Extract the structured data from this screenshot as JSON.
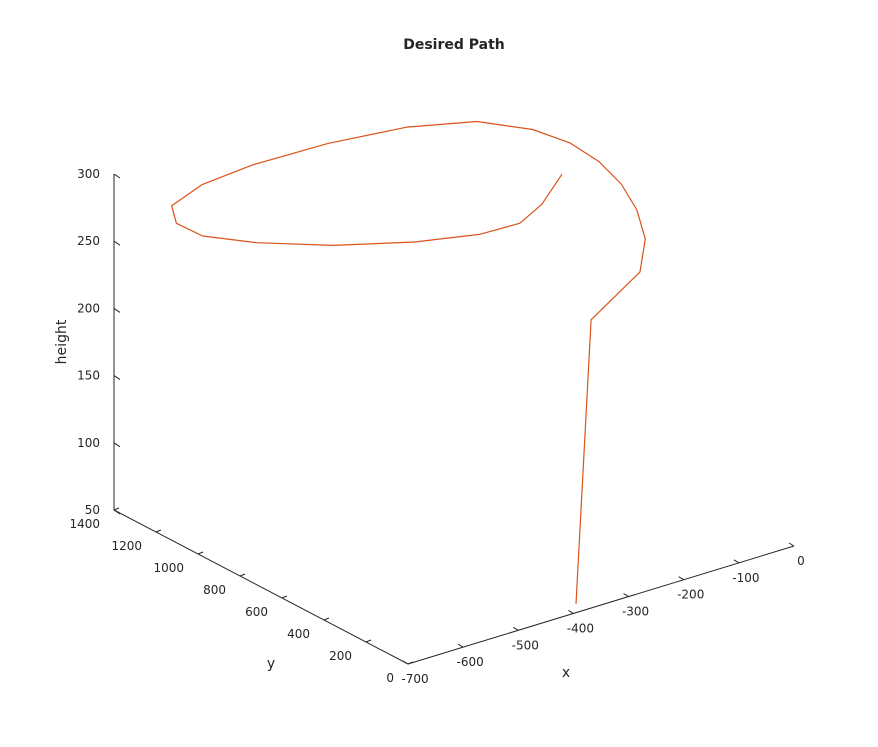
{
  "chart_data": {
    "type": "line3d",
    "title": "Desired Path",
    "xlabel": "x",
    "ylabel": "y",
    "zlabel": "height",
    "xlim": [
      -700,
      0
    ],
    "ylim": [
      0,
      1400
    ],
    "zlim": [
      50,
      300
    ],
    "x_ticks": [
      -700,
      -600,
      -500,
      -400,
      -300,
      -200,
      -100,
      0
    ],
    "y_ticks": [
      0,
      200,
      400,
      600,
      800,
      1000,
      1200,
      1400
    ],
    "z_ticks": [
      50,
      100,
      150,
      200,
      250,
      300
    ],
    "grid": false,
    "line_color": "#D95319",
    "series": [
      {
        "points": [
          [
            -382,
            35,
            52
          ],
          [
            -208,
            420,
            210
          ],
          [
            -106,
            455,
            230
          ],
          [
            -66,
            535,
            243
          ],
          [
            -47,
            625,
            255
          ],
          [
            -41,
            715,
            266
          ],
          [
            -47,
            805,
            276
          ],
          [
            -66,
            895,
            285
          ],
          [
            -97,
            990,
            291
          ],
          [
            -164,
            1080,
            298
          ],
          [
            -262,
            1155,
            300
          ],
          [
            -389,
            1200,
            300
          ],
          [
            -515,
            1225,
            298
          ],
          [
            -611,
            1215,
            296
          ],
          [
            -683,
            1170,
            293
          ],
          [
            -701,
            1100,
            288
          ],
          [
            -684,
            1020,
            283
          ],
          [
            -616,
            940,
            276
          ],
          [
            -514,
            845,
            269
          ],
          [
            -399,
            760,
            264
          ],
          [
            -302,
            705,
            262
          ],
          [
            -240,
            675,
            265
          ],
          [
            -203,
            668,
            275
          ],
          [
            -158,
            690,
            290
          ]
        ]
      }
    ]
  }
}
